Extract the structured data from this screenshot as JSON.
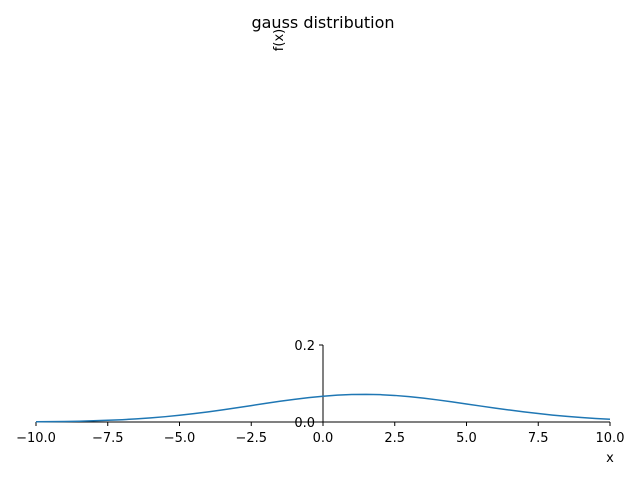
{
  "chart_data": {
    "type": "line",
    "title": "gauss distribution",
    "xlabel": "x",
    "ylabel": "f(x)",
    "xlim": [
      -10,
      10
    ],
    "ylim": [
      0,
      0.2
    ],
    "x_ticks": [
      -10,
      -7.5,
      -5,
      -2.5,
      0,
      2.5,
      5,
      7.5,
      10
    ],
    "x_tick_labels": [
      "−10.0",
      "−7.5",
      "−5.0",
      "−2.5",
      "0.0",
      "2.5",
      "5.0",
      "7.5",
      "10.0"
    ],
    "y_ticks": [
      0.0,
      0.2
    ],
    "y_tick_labels": [
      "0.0",
      "0.2"
    ],
    "grid": false,
    "color": "#1f77b4",
    "series": [
      {
        "x": [
          -10,
          -9.5,
          -9,
          -8.5,
          -8,
          -7.5,
          -7,
          -6.5,
          -6,
          -5.5,
          -5,
          -4.5,
          -4,
          -3.5,
          -3,
          -2.5,
          -2,
          -1.5,
          -1,
          -0.5,
          0,
          0.5,
          1,
          1.5,
          2,
          2.5,
          3,
          3.5,
          4,
          4.5,
          5,
          5.5,
          6,
          6.5,
          7,
          7.5,
          8,
          8.5,
          9,
          9.5,
          10
        ],
        "y": [
          0.0006,
          0.0009,
          0.0014,
          0.0021,
          0.0031,
          0.0044,
          0.006,
          0.0081,
          0.0107,
          0.0138,
          0.0175,
          0.0217,
          0.0264,
          0.0316,
          0.037,
          0.0426,
          0.0484,
          0.0538,
          0.0589,
          0.0633,
          0.067,
          0.0697,
          0.0713,
          0.0718,
          0.071,
          0.069,
          0.0659,
          0.062,
          0.0573,
          0.0522,
          0.0468,
          0.0414,
          0.0361,
          0.0311,
          0.0264,
          0.022,
          0.018,
          0.0146,
          0.0116,
          0.0091,
          0.007
        ]
      }
    ]
  }
}
